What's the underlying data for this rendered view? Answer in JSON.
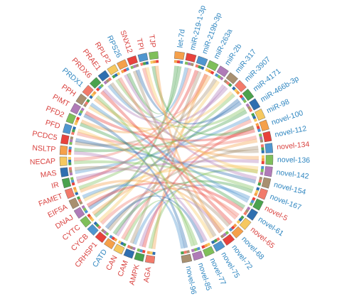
{
  "right_nodes": [
    {
      "label": "let-7d",
      "color": "#2f86c0"
    },
    {
      "label": "miR-219-1-3p",
      "color": "#2f86c0"
    },
    {
      "label": "miR-219b-3p",
      "color": "#2f86c0"
    },
    {
      "label": "miR-263a",
      "color": "#2f86c0"
    },
    {
      "label": "miR-2b",
      "color": "#2f86c0"
    },
    {
      "label": "miR-317",
      "color": "#2f86c0"
    },
    {
      "label": "miR-3907",
      "color": "#2f86c0"
    },
    {
      "label": "miR-4171",
      "color": "#2f86c0"
    },
    {
      "label": "miR-466b-3p",
      "color": "#2f86c0"
    },
    {
      "label": "miR-98",
      "color": "#2f86c0"
    },
    {
      "label": "novel-100",
      "color": "#2f86c0"
    },
    {
      "label": "novel-112",
      "color": "#2f86c0"
    },
    {
      "label": "novel-134",
      "color": "#d9423f"
    },
    {
      "label": "novel-136",
      "color": "#2f86c0"
    },
    {
      "label": "novel-142",
      "color": "#2f86c0"
    },
    {
      "label": "novel-154",
      "color": "#2f86c0"
    },
    {
      "label": "novel-167",
      "color": "#2f86c0"
    },
    {
      "label": "novel-5",
      "color": "#d9423f"
    },
    {
      "label": "novel-61",
      "color": "#2f86c0"
    },
    {
      "label": "novel-65",
      "color": "#d9423f"
    },
    {
      "label": "novel-68",
      "color": "#2f86c0"
    },
    {
      "label": "novel-72",
      "color": "#2f86c0"
    },
    {
      "label": "novel-75",
      "color": "#2f86c0"
    },
    {
      "label": "novel-77",
      "color": "#2f86c0"
    },
    {
      "label": "novel-85",
      "color": "#2f86c0"
    },
    {
      "label": "novel-96",
      "color": "#2f86c0"
    }
  ],
  "left_nodes": [
    {
      "label": "AGA",
      "color": "#d9423f"
    },
    {
      "label": "AMPK",
      "color": "#d9423f"
    },
    {
      "label": "CAM",
      "color": "#d9423f"
    },
    {
      "label": "CAN",
      "color": "#d9423f"
    },
    {
      "label": "CATD",
      "color": "#2f86c0"
    },
    {
      "label": "CRHSP1",
      "color": "#d9423f"
    },
    {
      "label": "CYCB",
      "color": "#d9423f"
    },
    {
      "label": "CYTC",
      "color": "#d9423f"
    },
    {
      "label": "DNAJ",
      "color": "#d9423f"
    },
    {
      "label": "EIF5A",
      "color": "#d9423f"
    },
    {
      "label": "FAMET",
      "color": "#d9423f"
    },
    {
      "label": "IR",
      "color": "#d9423f"
    },
    {
      "label": "MAS",
      "color": "#d9423f"
    },
    {
      "label": "NECAP",
      "color": "#d9423f"
    },
    {
      "label": "NSLTP",
      "color": "#d9423f"
    },
    {
      "label": "PCDC5",
      "color": "#d9423f"
    },
    {
      "label": "PFD",
      "color": "#d9423f"
    },
    {
      "label": "PFD2",
      "color": "#d9423f"
    },
    {
      "label": "PIMT",
      "color": "#d9423f"
    },
    {
      "label": "PPH",
      "color": "#d9423f"
    },
    {
      "label": "PRDX1",
      "color": "#2f86c0"
    },
    {
      "label": "PRDX6",
      "color": "#d9423f"
    },
    {
      "label": "PRAE1",
      "color": "#d9423f"
    },
    {
      "label": "RPLP2",
      "color": "#d9423f"
    },
    {
      "label": "RPS26",
      "color": "#2f86c0"
    },
    {
      "label": "SNX12",
      "color": "#d9423f"
    },
    {
      "label": "TPI",
      "color": "#d9423f"
    },
    {
      "label": "TJP",
      "color": "#d9423f"
    }
  ]
}
